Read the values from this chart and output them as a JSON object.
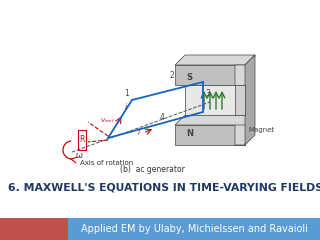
{
  "title": "6. MAXWELL'S EQUATIONS IN TIME-VARYING FIELDS",
  "subtitle": "Applied EM by Ulaby, Michielssen and Ravaioli",
  "title_color": "#1f3864",
  "title_fontsize": 7.8,
  "subtitle_fontsize": 7.0,
  "subtitle_bg_color": "#5b9bd5",
  "subtitle_text_color": "#ffffff",
  "left_bar_color": "#c0504d",
  "bg_color": "#ffffff",
  "diagram_label": "(b)  ac generator",
  "axis_label": "Axis of rotation",
  "magnet_face": "#c0c0c0",
  "magnet_top": "#d8d8d8",
  "magnet_side": "#a8a8a8",
  "magnet_inner": "#e8e8e8",
  "coil_color": "#1565c0",
  "arrow_color": "#2e7d32",
  "red_color": "#cc0000",
  "dark": "#444444"
}
